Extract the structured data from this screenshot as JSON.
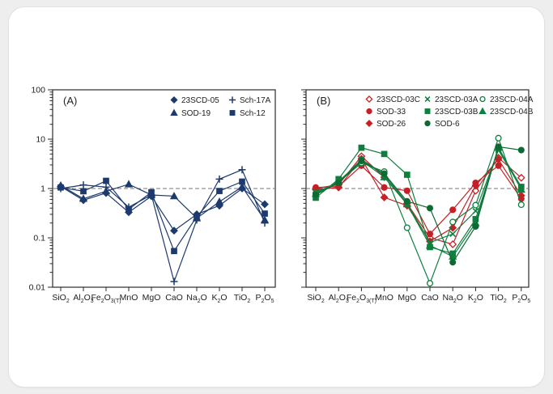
{
  "window": {
    "background": "#eeeeee",
    "card_background": "#ffffff"
  },
  "colors": {
    "navy": "#1c3a6e",
    "red": "#c42127",
    "green": "#0f7f3e",
    "dark_green": "#0e6a33",
    "axis": "#2b2b2b",
    "dashed_line": "#777777"
  },
  "chart_data": {
    "type": "line",
    "y_scale": "log",
    "ylim": [
      0.01,
      100
    ],
    "y_tick_labels": [
      "100",
      "10",
      "1",
      "0.1",
      "0.01"
    ],
    "reference_line_value": 1,
    "grid": "off",
    "legend_position": "top-right-inside",
    "categories": [
      "SiO_2",
      "Al_2O_3",
      "Fe_2O_3_(T)",
      "MnO",
      "MgO",
      "CaO",
      "Na_2O",
      "K_2O",
      "TiO_2",
      "P_2O_5"
    ],
    "panels": [
      {
        "label": "(A)",
        "legend_columns": [
          [
            "23SCD-05",
            "SOD-19"
          ],
          [
            "Sch-17A",
            "Sch-12"
          ]
        ],
        "series": [
          {
            "name": "23SCD-05",
            "marker": "diamond",
            "open": false,
            "color_key": "navy",
            "values": [
              1.1,
              0.58,
              0.81,
              0.33,
              0.7,
              0.14,
              0.3,
              0.45,
              1.0,
              0.48
            ]
          },
          {
            "name": "SOD-19",
            "marker": "triangle",
            "open": false,
            "color_key": "navy",
            "values": [
              1.15,
              0.62,
              0.88,
              1.22,
              0.74,
              0.7,
              0.25,
              0.54,
              1.08,
              0.23
            ]
          },
          {
            "name": "Sch-17A",
            "marker": "plus",
            "open": false,
            "color_key": "navy",
            "values": [
              1.0,
              1.18,
              1.07,
              0.42,
              0.74,
              0.013,
              0.23,
              1.55,
              2.4,
              0.2
            ]
          },
          {
            "name": "Sch-12",
            "marker": "square",
            "open": false,
            "color_key": "navy",
            "values": [
              1.05,
              0.88,
              1.43,
              0.38,
              0.84,
              0.054,
              0.27,
              0.89,
              1.38,
              0.31
            ]
          }
        ]
      },
      {
        "label": "(B)",
        "legend_columns": [
          [
            "23SCD-03C",
            "SOD-33",
            "SOD-26"
          ],
          [
            "23SCD-03A",
            "23SCD-03B",
            "SOD-6"
          ],
          [
            "23SCD-04A",
            "23SCD-04B"
          ]
        ],
        "series": [
          {
            "name": "23SCD-03C",
            "marker": "diamond",
            "open": true,
            "color_key": "red",
            "values": [
              1.0,
              1.2,
              4.5,
              1.7,
              0.5,
              0.1,
              0.074,
              0.9,
              4.2,
              1.65
            ]
          },
          {
            "name": "SOD-33",
            "marker": "circle",
            "open": false,
            "color_key": "red",
            "values": [
              1.05,
              1.1,
              2.9,
              1.05,
              0.9,
              0.12,
              0.37,
              1.3,
              2.9,
              0.62
            ]
          },
          {
            "name": "SOD-26",
            "marker": "diamond",
            "open": false,
            "color_key": "red",
            "values": [
              0.95,
              1.05,
              4.0,
              0.66,
              0.45,
              0.085,
              0.16,
              1.15,
              3.9,
              0.72
            ]
          },
          {
            "name": "23SCD-03A",
            "marker": "x",
            "open": false,
            "color_key": "green",
            "values": [
              0.85,
              1.3,
              3.9,
              1.9,
              0.5,
              0.08,
              0.12,
              0.35,
              6.0,
              1.0
            ]
          },
          {
            "name": "23SCD-03B",
            "marker": "square",
            "open": false,
            "color_key": "green",
            "values": [
              0.65,
              1.55,
              6.7,
              5.0,
              1.9,
              0.065,
              0.048,
              0.24,
              6.5,
              1.08
            ]
          },
          {
            "name": "23SCD-04A",
            "marker": "circle",
            "open": true,
            "color_key": "green",
            "values": [
              0.8,
              1.35,
              3.3,
              2.2,
              0.16,
              0.012,
              0.21,
              0.46,
              10.5,
              0.47
            ]
          },
          {
            "name": "23SCD-04B",
            "marker": "triangle",
            "open": false,
            "color_key": "green",
            "values": [
              0.78,
              1.4,
              3.7,
              1.7,
              0.48,
              0.07,
              0.042,
              0.2,
              6.8,
              0.95
            ]
          },
          {
            "name": "SOD-6",
            "marker": "circle",
            "open": false,
            "color_key": "dark_green",
            "values": [
              0.75,
              1.3,
              3.6,
              2.0,
              0.55,
              0.4,
              0.032,
              0.17,
              7.0,
              6.0
            ]
          }
        ]
      }
    ]
  }
}
